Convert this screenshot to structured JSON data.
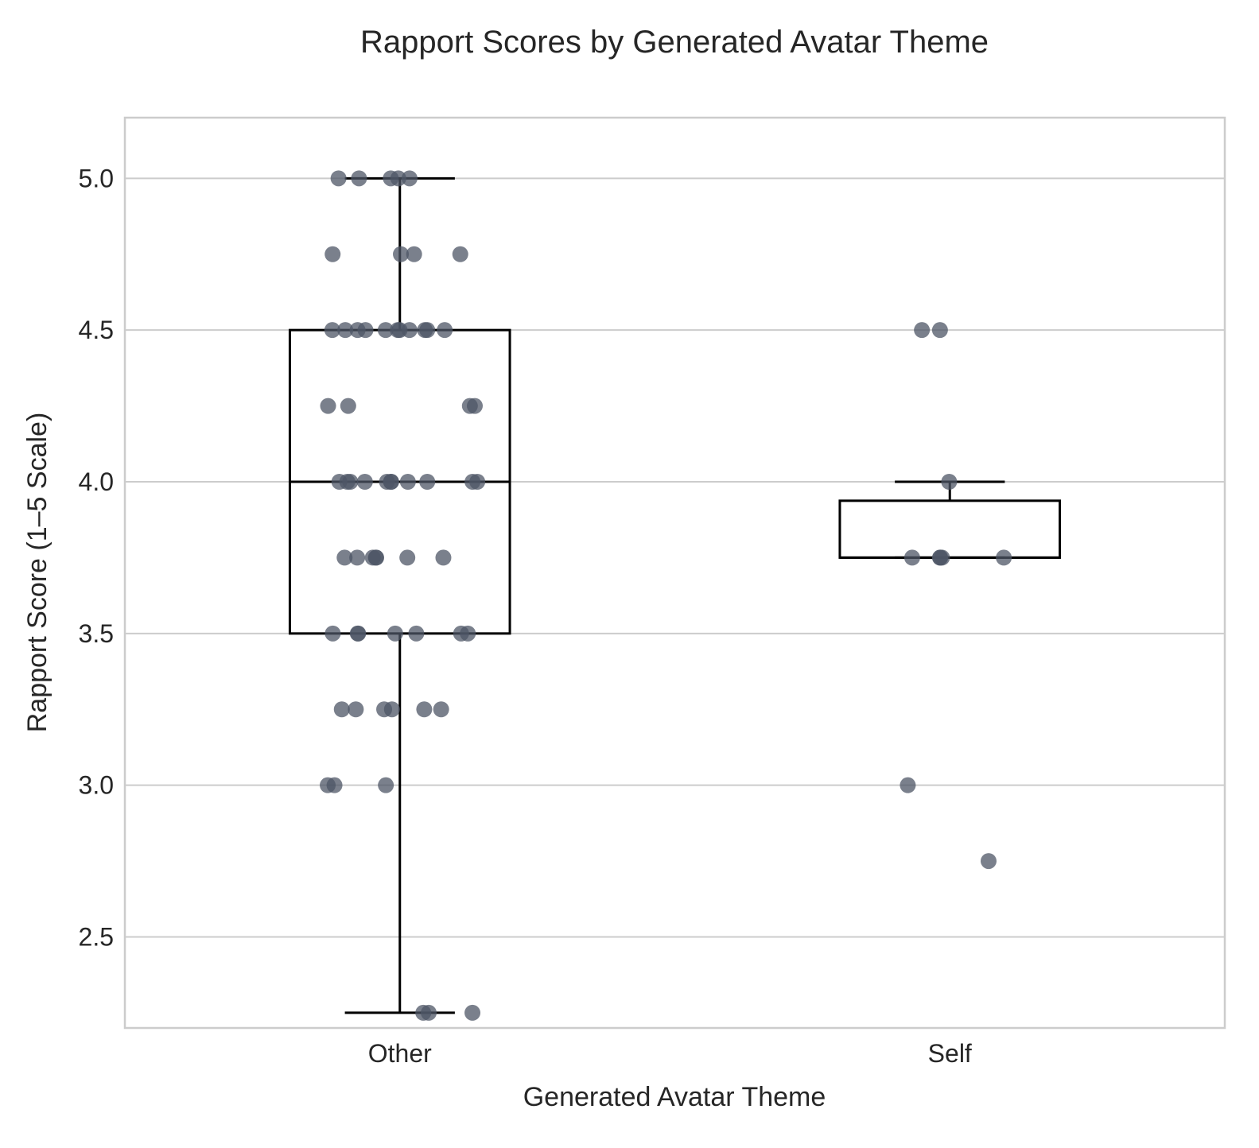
{
  "chart_data": {
    "type": "box",
    "title": "Rapport Scores by Generated Avatar Theme",
    "xlabel": "Generated Avatar Theme",
    "ylabel": "Rapport Score (1–5 Scale)",
    "ylim": [
      2.2,
      5.2
    ],
    "yticks": [
      2.5,
      3.0,
      3.5,
      4.0,
      4.5,
      5.0
    ],
    "ytick_labels": [
      "2.5",
      "3.0",
      "3.5",
      "4.0",
      "4.5",
      "5.0"
    ],
    "grid": "horizontal",
    "point_color": "#4d5566",
    "box_color": "#000000",
    "categories": [
      "Other",
      "Self"
    ],
    "groups": [
      {
        "category": "Other",
        "whisker_low": 2.25,
        "q1": 3.5,
        "median": 4.0,
        "q3": 4.5,
        "whisker_high": 5.0,
        "points": [
          5.0,
          5.0,
          5.0,
          5.0,
          5.0,
          4.75,
          4.75,
          4.75,
          4.75,
          4.5,
          4.5,
          4.5,
          4.5,
          4.5,
          4.5,
          4.5,
          4.5,
          4.5,
          4.5,
          4.5,
          4.25,
          4.25,
          4.25,
          4.25,
          4.0,
          4.0,
          4.0,
          4.0,
          4.0,
          4.0,
          4.0,
          4.0,
          4.0,
          4.0,
          4.0,
          3.75,
          3.75,
          3.75,
          3.75,
          3.75,
          3.75,
          3.75,
          3.5,
          3.5,
          3.5,
          3.5,
          3.5,
          3.5,
          3.5,
          3.25,
          3.25,
          3.25,
          3.25,
          3.25,
          3.25,
          3.0,
          3.0,
          3.0,
          2.25,
          2.25,
          2.25
        ]
      },
      {
        "category": "Self",
        "whisker_low": 3.75,
        "q1": 3.75,
        "median": 3.75,
        "q3": 3.9375,
        "whisker_high": 4.0,
        "points": [
          4.5,
          4.5,
          4.0,
          3.75,
          3.75,
          3.75,
          3.75,
          3.75,
          3.0,
          2.75
        ]
      }
    ]
  }
}
